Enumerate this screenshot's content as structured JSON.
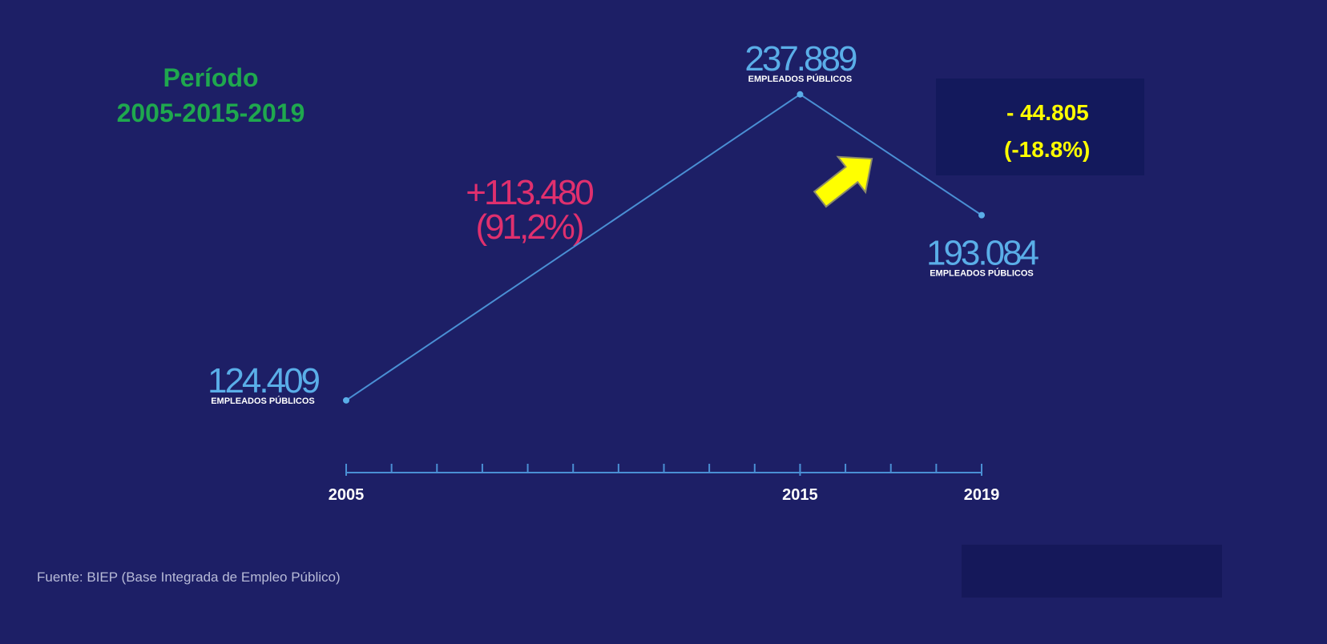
{
  "chart_data": {
    "type": "line",
    "title": "Período",
    "subtitle": "2005-2015-2019",
    "x": [
      2005,
      2015,
      2019
    ],
    "values": [
      124409,
      237889,
      193084
    ],
    "value_labels": [
      "124.409",
      "237.889",
      "193.084"
    ],
    "point_caption": "EMPLEADOS PÚBLICOS",
    "color": "#4a8fd4",
    "label_color": "#5aaee8",
    "xlim": [
      2005,
      2019
    ],
    "xticks": [
      2005,
      2015,
      2019
    ],
    "ylim": [
      100000,
      250000
    ],
    "annotations": [
      "+113.480",
      "(91,2%)",
      "- 44.805",
      "(-18.8%)"
    ],
    "source": "Fuente: BIEP (Base Integrada de Empleo Público)"
  }
}
